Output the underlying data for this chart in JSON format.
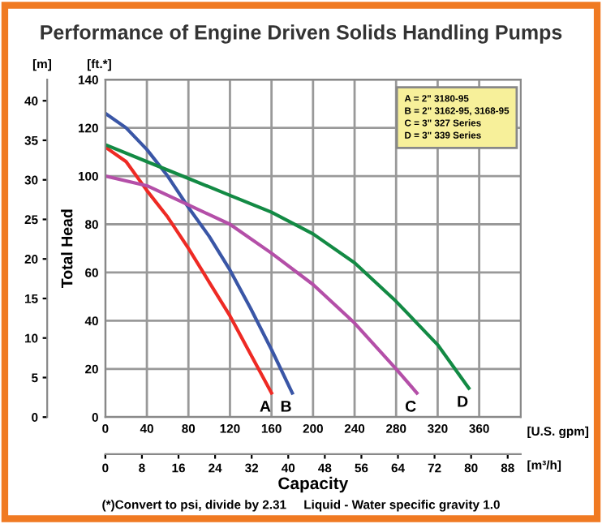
{
  "chart_data": {
    "type": "line",
    "title": "Performance of Engine Driven Solids Handling Pumps",
    "xlabel": "Capacity",
    "ylabel": "Total Head",
    "y2label": "[m]",
    "x2label": "[m³/h]",
    "annotations": [
      "[ft.*]",
      "[U.S. gpm]",
      "A = 2\" 3180-95\nB = 2\" 3162-95, 3168-95\nC = 3\" 327 Series\nD = 3\" 339 Series",
      "(*)Convert to psi, divide by 2.31     Liquid - Water specific gravity 1.0"
    ],
    "xlim": [
      0,
      400
    ],
    "xticks": [
      0,
      40,
      80,
      120,
      160,
      200,
      240,
      280,
      320,
      360
    ],
    "ylim": [
      0,
      140
    ],
    "yticks": [
      0,
      20,
      40,
      60,
      80,
      100,
      120,
      140
    ],
    "x2lim": [
      0,
      90.85
    ],
    "x2ticks": [
      0,
      8,
      16,
      24,
      32,
      40,
      48,
      56,
      64,
      72,
      80,
      88
    ],
    "y2lim": [
      0,
      42.67
    ],
    "y2ticks": [
      0,
      5,
      10,
      15,
      20,
      25,
      30,
      35,
      40
    ],
    "grid": true,
    "legend": false,
    "series": [
      {
        "name": "A",
        "color": "#ee2a24",
        "x": [
          0,
          20,
          40,
          60,
          80,
          100,
          120,
          140,
          160
        ],
        "values": [
          112,
          106,
          94,
          83,
          70,
          56,
          42,
          26,
          10
        ]
      },
      {
        "name": "B",
        "color": "#3a56a6",
        "x": [
          0,
          20,
          40,
          60,
          80,
          100,
          120,
          140,
          160,
          180
        ],
        "values": [
          126,
          120,
          111,
          100,
          87,
          75,
          61,
          45,
          28,
          10
        ]
      },
      {
        "name": "C",
        "color": "#b44fa8",
        "x": [
          0,
          40,
          80,
          120,
          160,
          200,
          240,
          280,
          300
        ],
        "values": [
          100,
          96,
          88,
          80,
          68,
          55,
          39,
          20,
          10
        ]
      },
      {
        "name": "D",
        "color": "#138a44",
        "x": [
          0,
          40,
          80,
          120,
          160,
          200,
          240,
          280,
          320,
          350
        ],
        "values": [
          113,
          106,
          99,
          92,
          85,
          76,
          64,
          48,
          30,
          12
        ]
      }
    ]
  }
}
